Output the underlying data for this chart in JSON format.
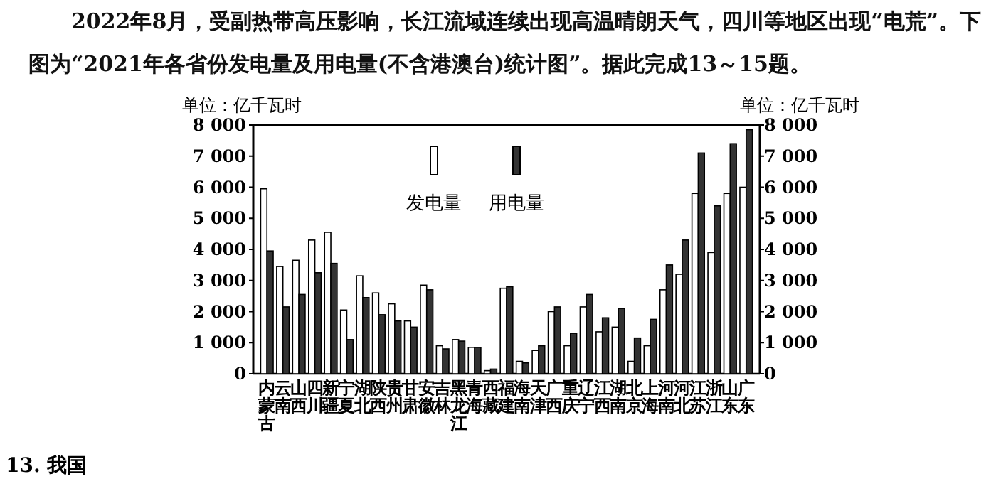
{
  "chart_data": {
    "type": "bar",
    "annotations": [
      "2022年8月，受副热带高压影响，长江流域连续出现高温晴朗天气，四川等地区出现“电荒”。下图为“2021年各省份发电量及用电量(不含港澳台)统计图”。据此完成13～15题。",
      "13. 我国"
    ],
    "ylabel": "单位：亿千瓦时",
    "y2label": "单位：亿千瓦时",
    "categories": [
      "内蒙古",
      "云南",
      "山西",
      "四川",
      "新疆",
      "宁夏",
      "湖北",
      "陕西",
      "贵州",
      "甘肃",
      "安徽",
      "吉林",
      "黑龙江",
      "青海",
      "西藏",
      "福建",
      "海南",
      "天津",
      "广西",
      "重庆",
      "辽宁",
      "江西",
      "湖南",
      "北京",
      "上海",
      "河南",
      "河北",
      "江苏",
      "浙江",
      "山东",
      "广东"
    ],
    "series": [
      {
        "name": "发电量",
        "color": "#ffffff",
        "values": [
          5950,
          3450,
          3650,
          4300,
          4550,
          2050,
          3150,
          2600,
          2250,
          1700,
          2850,
          900,
          1100,
          850,
          100,
          2750,
          400,
          750,
          2000,
          900,
          2150,
          1350,
          1500,
          400,
          900,
          2700,
          3200,
          5800,
          3900,
          5800,
          6000
        ]
      },
      {
        "name": "用电量",
        "color": "#333333",
        "values": [
          3950,
          2150,
          2550,
          3250,
          3550,
          1100,
          2450,
          1900,
          1700,
          1500,
          2700,
          800,
          1050,
          850,
          150,
          2800,
          350,
          900,
          2150,
          1300,
          2550,
          1800,
          2100,
          1150,
          1750,
          3500,
          4300,
          7100,
          5400,
          7400,
          7850
        ]
      }
    ],
    "ylim": [
      0,
      8000
    ],
    "yticks": [
      0,
      {
        "value": 1000,
        "label": "1 000"
      },
      {
        "value": 2000,
        "label": "2 000"
      },
      {
        "value": 3000,
        "label": "3 000"
      },
      {
        "value": 4000,
        "label": "4 000"
      },
      {
        "value": 5000,
        "label": "5 000"
      },
      {
        "value": 6000,
        "label": "6 000"
      },
      {
        "value": 7000,
        "label": "7 000"
      },
      {
        "value": 8000,
        "label": "8 000"
      }
    ],
    "y2lim": [
      0,
      8000
    ],
    "y2ticks": [
      0,
      {
        "value": 1000,
        "label": "1 000"
      },
      {
        "value": 2000,
        "label": "2 000"
      },
      {
        "value": 3000,
        "label": "3 000"
      },
      {
        "value": 4000,
        "label": "4 000"
      },
      {
        "value": 5000,
        "label": "5 000"
      },
      {
        "value": 6000,
        "label": "6 000"
      },
      {
        "value": 7000,
        "label": "7 000"
      },
      {
        "value": 8000,
        "label": "8 000"
      }
    ],
    "legend": "top",
    "grid": false
  }
}
